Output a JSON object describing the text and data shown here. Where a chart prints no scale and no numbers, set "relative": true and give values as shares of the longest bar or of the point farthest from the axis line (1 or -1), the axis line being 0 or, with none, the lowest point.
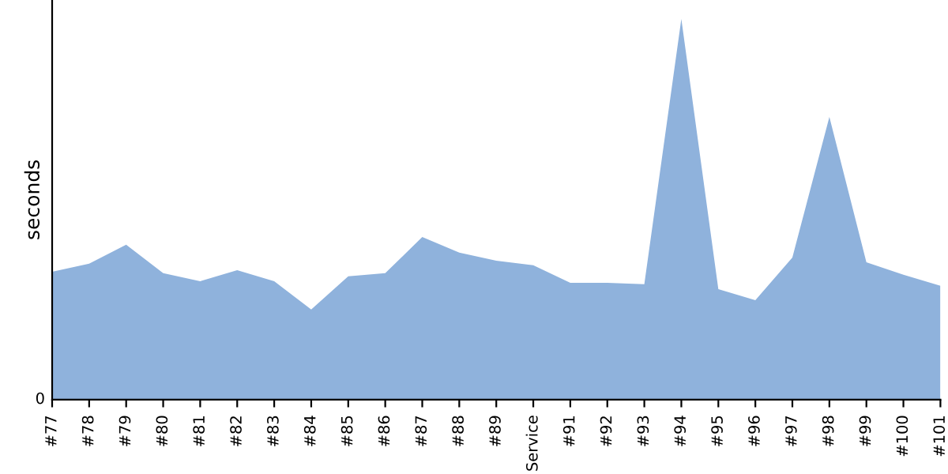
{
  "chart_data": {
    "type": "area",
    "ylabel": "seconds",
    "relative": true,
    "color": "#8fb2dc",
    "categories": [
      "#77",
      "#78",
      "#79",
      "#80",
      "#81",
      "#82",
      "#83",
      "#84",
      "#85",
      "#86",
      "#87",
      "#88",
      "#89",
      "Service",
      "#91",
      "#92",
      "#93",
      "#94",
      "#95",
      "#96",
      "#97",
      "#98",
      "#99",
      "#100",
      "#101"
    ],
    "values": [
      0.336,
      0.357,
      0.407,
      0.332,
      0.311,
      0.34,
      0.311,
      0.237,
      0.324,
      0.332,
      0.427,
      0.386,
      0.365,
      0.353,
      0.307,
      0.307,
      0.303,
      1,
      0.29,
      0.261,
      0.373,
      0.743,
      0.361,
      0.328,
      0.299
    ],
    "annotations": [
      "0"
    ],
    "grid": false
  }
}
